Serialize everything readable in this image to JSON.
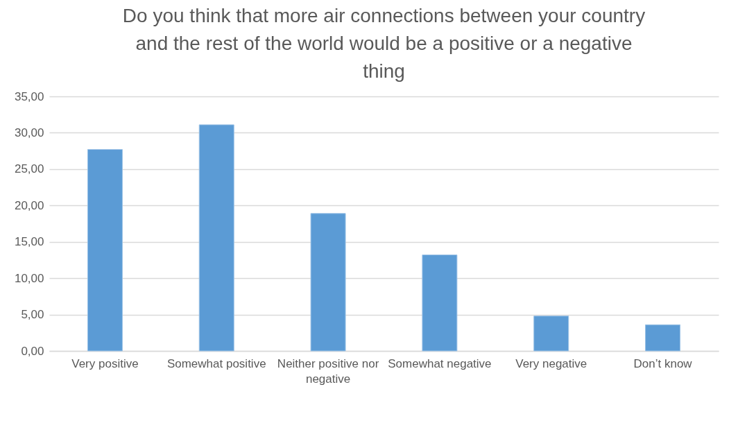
{
  "chart_data": {
    "type": "bar",
    "title": "Do you think that more air connections between your country and the rest of the world would be a positive or a negative thing",
    "categories": [
      "Very positive",
      "Somewhat positive",
      "Neither positive nor negative",
      "Somewhat negative",
      "Very negative",
      "Don’t know"
    ],
    "values": [
      27.7,
      31.1,
      18.9,
      13.2,
      4.8,
      3.6
    ],
    "color": "#5b9bd5",
    "ylim": [
      0,
      35
    ],
    "yticks": [
      {
        "value": 0,
        "label": "0,00"
      },
      {
        "value": 5,
        "label": "5,00"
      },
      {
        "value": 10,
        "label": "10,00"
      },
      {
        "value": 15,
        "label": "15,00"
      },
      {
        "value": 20,
        "label": "20,00"
      },
      {
        "value": 25,
        "label": "25,00"
      },
      {
        "value": 30,
        "label": "30,00"
      },
      {
        "value": 35,
        "label": "35,00"
      }
    ],
    "grid": true
  }
}
